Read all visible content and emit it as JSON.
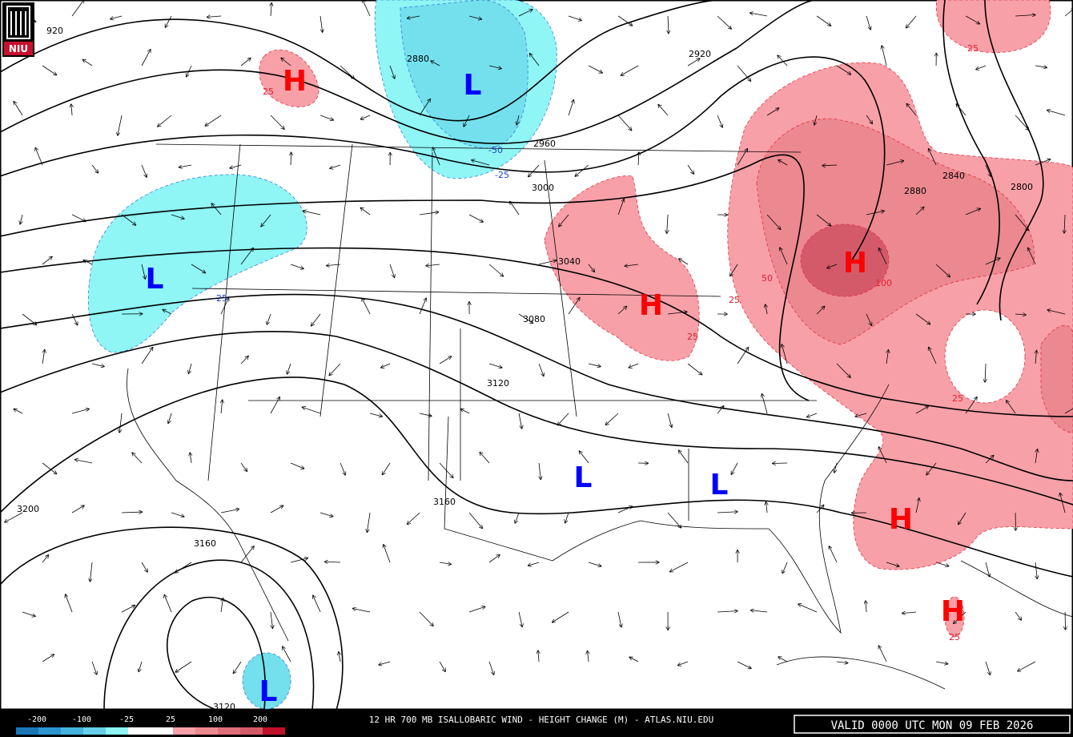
{
  "logo": {
    "text": "NIU"
  },
  "height_contours": [
    "920",
    "2880",
    "2920",
    "2960",
    "3000",
    "3040",
    "3080",
    "3120",
    "3160",
    "3200",
    "3160",
    "3120",
    "2840",
    "2880",
    "2800"
  ],
  "change_labels": [
    "-50",
    "-25",
    "-25",
    "25",
    "25",
    "25",
    "25",
    "50",
    "100",
    "25",
    "25"
  ],
  "centers": [
    "H",
    "L",
    "L",
    "H",
    "H",
    "L",
    "L",
    "H",
    "H",
    "L"
  ],
  "legend": [
    "-200",
    "-100",
    "-25",
    "25",
    "100",
    "200"
  ],
  "footer": {
    "title": "12 HR 700 MB ISALLOBARIC WIND - HEIGHT CHANGE (M) - ATLAS.NIU.EDU",
    "valid": "VALID 0000 UTC MON 09 FEB 2026"
  }
}
